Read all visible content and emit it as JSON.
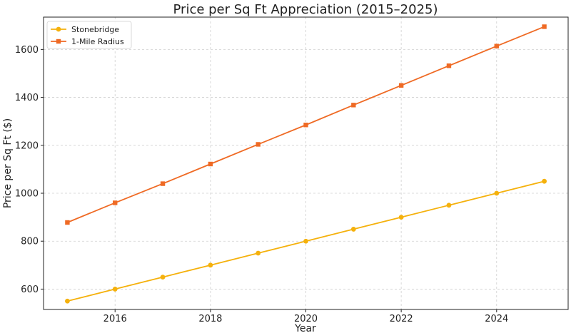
{
  "chart_data": {
    "type": "line",
    "title": "Price per Sq Ft Appreciation (2015–2025)",
    "xlabel": "Year",
    "ylabel": "Price per Sq Ft ($)",
    "x": [
      2015,
      2016,
      2017,
      2018,
      2019,
      2020,
      2021,
      2022,
      2023,
      2024,
      2025
    ],
    "xticks": [
      2016,
      2018,
      2020,
      2022,
      2024
    ],
    "yticks": [
      600,
      800,
      1000,
      1200,
      1400,
      1600
    ],
    "xlim": [
      2014.5,
      2025.5
    ],
    "ylim": [
      515,
      1735
    ],
    "grid": true,
    "legend_position": "top-left",
    "series": [
      {
        "name": "Stonebridge",
        "color": "#f5b10c",
        "marker": "circle",
        "values": [
          550,
          600,
          650,
          700,
          750,
          800,
          850,
          900,
          950,
          1000,
          1050
        ]
      },
      {
        "name": "1-Mile Radius",
        "color": "#ef6a24",
        "marker": "square",
        "values": [
          878,
          960,
          1040,
          1122,
          1204,
          1285,
          1368,
          1450,
          1532,
          1614,
          1695
        ]
      }
    ]
  }
}
